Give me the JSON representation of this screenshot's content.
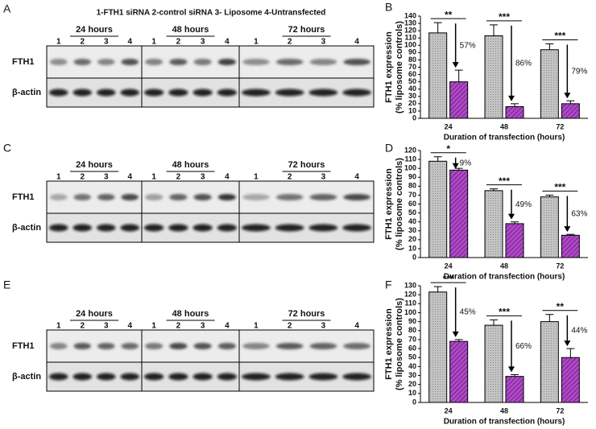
{
  "figure_title": "1-FTH1 siRNA 2-control siRNA 3- Liposome 4-Untransfected",
  "blots": [
    {
      "panel": "A",
      "time_labels": [
        "24 hours",
        "48 hours",
        "72 hours"
      ],
      "lanes": [
        "1",
        "2",
        "3",
        "4"
      ],
      "rows": [
        "FTH1",
        "β-actin"
      ]
    },
    {
      "panel": "C",
      "time_labels": [
        "24 hours",
        "48 hours",
        "72 hours"
      ],
      "lanes": [
        "1",
        "2",
        "3",
        "4"
      ],
      "rows": [
        "FTH1",
        "β-actin"
      ]
    },
    {
      "panel": "E",
      "time_labels": [
        "24 hours",
        "48 hours",
        "72 hours"
      ],
      "lanes": [
        "1",
        "2",
        "3",
        "4"
      ],
      "rows": [
        "FTH1",
        "β-actin"
      ]
    }
  ],
  "chart_data": [
    {
      "type": "bar",
      "panel": "B",
      "ylabel": [
        "FTH1 expression",
        "(% liposome controls)"
      ],
      "xlabel": "Duration of transfection (hours)",
      "categories": [
        "24",
        "48",
        "72"
      ],
      "ylim": [
        0,
        140
      ],
      "yticks": [
        0,
        10,
        20,
        30,
        40,
        50,
        60,
        70,
        80,
        90,
        100,
        110,
        120,
        130,
        140
      ],
      "series": [
        {
          "color": "#c4c4c4",
          "values": [
            117,
            113,
            94
          ],
          "errors": [
            14,
            15,
            8
          ]
        },
        {
          "color": "#b048c8",
          "values": [
            50,
            16,
            20
          ],
          "errors": [
            16,
            4,
            4
          ]
        }
      ],
      "significance": [
        "**",
        "***",
        "***"
      ],
      "annotations": [
        "57%",
        "86%",
        "79%"
      ]
    },
    {
      "type": "bar",
      "panel": "D",
      "ylabel": [
        "FTH1 expression",
        "(% liposome controls)"
      ],
      "xlabel": "Duration of transfection (hours)",
      "categories": [
        "24",
        "48",
        "72"
      ],
      "ylim": [
        0,
        120
      ],
      "yticks": [
        0,
        10,
        20,
        30,
        40,
        50,
        60,
        70,
        80,
        90,
        100,
        110,
        120
      ],
      "series": [
        {
          "color": "#c4c4c4",
          "values": [
            108,
            75,
            68
          ],
          "errors": [
            5,
            2,
            2
          ]
        },
        {
          "color": "#b048c8",
          "values": [
            98,
            38,
            25
          ],
          "errors": [
            2,
            2,
            1
          ]
        }
      ],
      "significance": [
        "*",
        "***",
        "***"
      ],
      "annotations": [
        "9%",
        "49%",
        "63%"
      ]
    },
    {
      "type": "bar",
      "panel": "F",
      "ylabel": [
        "FTH1 expression",
        "(% liposome controls)"
      ],
      "xlabel": "Duration of transfection (hours)",
      "categories": [
        "24",
        "48",
        "72"
      ],
      "ylim": [
        0,
        130
      ],
      "yticks": [
        0,
        10,
        20,
        30,
        40,
        50,
        60,
        70,
        80,
        90,
        100,
        110,
        120,
        130
      ],
      "series": [
        {
          "color": "#c4c4c4",
          "values": [
            123,
            86,
            90
          ],
          "errors": [
            6,
            6,
            8
          ]
        },
        {
          "color": "#b048c8",
          "values": [
            68,
            29,
            50
          ],
          "errors": [
            2,
            2,
            10
          ]
        }
      ],
      "significance": [
        "***",
        "***",
        "**"
      ],
      "annotations": [
        "45%",
        "66%",
        "44%"
      ]
    }
  ]
}
